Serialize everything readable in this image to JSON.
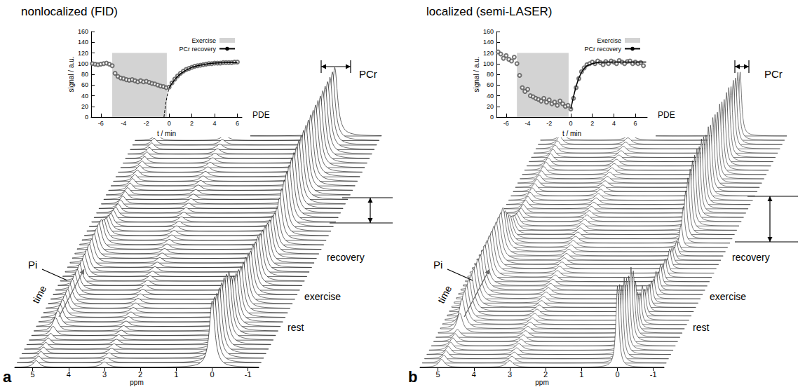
{
  "chart_data": [
    {
      "type": "waterfall",
      "title": "nonlocalized (FID)",
      "panel": "a",
      "x_label": "ppm",
      "xlim": [
        5.5,
        -1.3
      ],
      "xticks": [
        5,
        4,
        3,
        2,
        1,
        0,
        -1
      ],
      "time_label": "time",
      "phase_labels": [
        "rest",
        "exercise",
        "recovery"
      ],
      "peaks": [
        {
          "name": "Pi",
          "ppm": 4.9,
          "values": [
            10,
            10,
            10,
            10,
            10,
            10,
            10,
            14,
            20,
            24,
            26,
            27,
            28,
            29,
            29,
            30,
            31,
            31,
            32,
            32,
            33,
            34,
            35,
            36,
            37,
            38,
            39,
            38,
            32,
            27,
            23,
            20,
            18,
            16,
            14,
            13,
            12,
            12,
            11,
            11,
            11,
            10,
            10,
            10,
            10,
            10,
            10,
            10,
            10,
            10,
            10,
            10
          ]
        },
        {
          "name": "PDE",
          "ppm": 3.0,
          "value": 8
        },
        {
          "name": "PCr",
          "ppm": 0,
          "values": [
            100,
            99,
            98,
            99,
            100,
            101,
            99,
            96,
            82,
            76,
            73,
            72,
            70,
            69,
            70,
            68,
            66,
            68,
            66,
            67,
            65,
            63,
            62,
            60,
            58,
            57,
            55,
            56,
            64,
            71,
            77,
            82,
            86,
            89,
            91,
            93,
            95,
            96,
            97,
            98,
            99,
            100,
            100,
            101,
            101,
            101,
            102,
            102,
            102,
            102,
            103,
            103
          ]
        }
      ],
      "inset": {
        "type": "scatter",
        "x_label": "t / min",
        "y_label": "signal / a.u.",
        "xlim": [
          -6.85,
          6.4
        ],
        "xticks": [
          -6,
          -4,
          -2,
          0,
          2,
          4,
          6
        ],
        "ylim": [
          0,
          160
        ],
        "yticks": [
          0,
          20,
          40,
          60,
          80,
          100,
          120,
          140,
          160
        ],
        "legend": "upper right",
        "points": {
          "marker": "circle",
          "color": "#555555",
          "x": [
            -6.75,
            -6.5,
            -6.25,
            -6,
            -5.75,
            -5.5,
            -5.25,
            -5,
            -4.75,
            -4.5,
            -4.25,
            -4,
            -3.75,
            -3.5,
            -3.25,
            -3,
            -2.75,
            -2.5,
            -2.25,
            -2,
            -1.75,
            -1.5,
            -1.25,
            -1,
            -0.75,
            -0.5,
            -0.25,
            0,
            0.25,
            0.5,
            0.75,
            1,
            1.25,
            1.5,
            1.75,
            2,
            2.25,
            2.5,
            2.75,
            3,
            3.25,
            3.5,
            3.75,
            4,
            4.25,
            4.5,
            4.75,
            5,
            5.25,
            5.5,
            5.75,
            6
          ],
          "values": [
            100,
            99,
            98,
            99,
            100,
            101,
            99,
            96,
            82,
            76,
            73,
            72,
            70,
            69,
            70,
            68,
            66,
            68,
            66,
            67,
            65,
            63,
            62,
            60,
            58,
            57,
            55,
            56,
            64,
            71,
            77,
            82,
            86,
            89,
            91,
            93,
            95,
            96,
            97,
            98,
            99,
            100,
            100,
            101,
            101,
            101,
            102,
            102,
            102,
            102,
            103,
            103
          ]
        },
        "series": [
          {
            "name": "Exercise",
            "type": "area",
            "color": "#d3d3d3",
            "x": [
              -5,
              -0.2
            ],
            "values": [
              120,
              120
            ]
          },
          {
            "name": "PCr recovery",
            "type": "line",
            "color": "#000000",
            "x": [
              0,
              0.25,
              0.5,
              0.75,
              1,
              1.5,
              2,
              2.5,
              3,
              3.5,
              4,
              5,
              6
            ],
            "values": [
              55,
              63,
              70,
              76,
              81,
              88,
              93,
              96,
              98,
              100,
              101,
              102,
              102
            ]
          }
        ],
        "extrapolation": {
          "line_style": "dashed",
          "color": "#000000",
          "x": [
            -0.45,
            -0.3,
            -0.15,
            0
          ],
          "values": [
            0,
            25,
            42,
            55
          ]
        }
      }
    },
    {
      "type": "waterfall",
      "title": "localized (semi-LASER)",
      "panel": "b",
      "x_label": "ppm",
      "xlim": [
        5.5,
        -1.3
      ],
      "xticks": [
        5,
        4,
        3,
        2,
        1,
        0,
        -1
      ],
      "time_label": "time",
      "phase_labels": [
        "rest",
        "exercise",
        "recovery"
      ],
      "peaks": [
        {
          "name": "Pi",
          "ppm": 4.9,
          "values": [
            12,
            12,
            12,
            12,
            12,
            12,
            12,
            12,
            30,
            45,
            50,
            52,
            55,
            56,
            58,
            58,
            60,
            60,
            61,
            62,
            62,
            63,
            63,
            64,
            64,
            65,
            65,
            66,
            55,
            45,
            36,
            28,
            22,
            18,
            16,
            14,
            13,
            13,
            12,
            12,
            12,
            12,
            12,
            12,
            12,
            12,
            12,
            12,
            12,
            12,
            12,
            12,
            12,
            12,
            12
          ]
        },
        {
          "name": "PDE",
          "ppm": 3.0,
          "value": 10
        },
        {
          "name": "PCr",
          "ppm": 0,
          "values": [
            122,
            118,
            110,
            115,
            108,
            105,
            112,
            100,
            78,
            55,
            48,
            52,
            40,
            38,
            35,
            33,
            30,
            35,
            28,
            32,
            25,
            28,
            22,
            30,
            25,
            20,
            22,
            15,
            35,
            55,
            72,
            85,
            92,
            98,
            100,
            103,
            100,
            105,
            102,
            98,
            104,
            100,
            105,
            103,
            100,
            106,
            103,
            100,
            104,
            105,
            100,
            103,
            100,
            102,
            96
          ]
        }
      ],
      "inset": {
        "type": "scatter",
        "x_label": "t / min",
        "y_label": "signal / a.u.",
        "xlim": [
          -6.9,
          7.1
        ],
        "xticks": [
          -6,
          -4,
          -2,
          0,
          2,
          4,
          6
        ],
        "ylim": [
          0,
          160
        ],
        "yticks": [
          0,
          20,
          40,
          60,
          80,
          100,
          120,
          140,
          160
        ],
        "legend": "upper right",
        "points": {
          "marker": "circle",
          "color": "#555555",
          "x": [
            -6.75,
            -6.5,
            -6.25,
            -6,
            -5.75,
            -5.5,
            -5.25,
            -5,
            -4.75,
            -4.5,
            -4.25,
            -4,
            -3.75,
            -3.5,
            -3.25,
            -3,
            -2.75,
            -2.5,
            -2.25,
            -2,
            -1.75,
            -1.5,
            -1.25,
            -1,
            -0.75,
            -0.5,
            -0.25,
            0,
            0.25,
            0.5,
            0.75,
            1,
            1.25,
            1.5,
            1.75,
            2,
            2.25,
            2.5,
            2.75,
            3,
            3.25,
            3.5,
            3.75,
            4,
            4.25,
            4.5,
            4.75,
            5,
            5.25,
            5.5,
            5.75,
            6,
            6.25,
            6.5,
            6.75
          ],
          "values": [
            122,
            118,
            110,
            115,
            108,
            105,
            112,
            100,
            78,
            55,
            48,
            52,
            40,
            38,
            35,
            33,
            30,
            35,
            28,
            32,
            25,
            28,
            22,
            30,
            25,
            20,
            22,
            15,
            35,
            55,
            72,
            85,
            92,
            98,
            100,
            103,
            100,
            105,
            102,
            98,
            104,
            100,
            105,
            103,
            100,
            106,
            103,
            100,
            104,
            105,
            100,
            103,
            100,
            102,
            96
          ]
        },
        "series": [
          {
            "name": "Exercise",
            "type": "area",
            "color": "#d3d3d3",
            "x": [
              -5,
              -0.2
            ],
            "values": [
              120,
              120
            ]
          },
          {
            "name": "PCr recovery",
            "type": "line",
            "color": "#000000",
            "x": [
              0,
              0.25,
              0.5,
              0.75,
              1,
              1.25,
              1.5,
              2,
              2.5,
              3,
              4,
              5,
              6,
              7
            ],
            "values": [
              15,
              38,
              58,
              73,
              84,
              91,
              96,
              100,
              102,
              103,
              103,
              103,
              103,
              103
            ]
          }
        ]
      }
    }
  ]
}
